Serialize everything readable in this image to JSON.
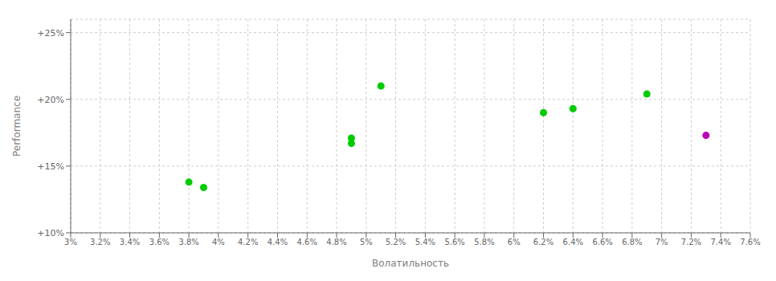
{
  "chart_data": {
    "type": "scatter",
    "xlabel": "Волатильность",
    "ylabel": "Performance",
    "xlim": [
      0.03,
      0.076
    ],
    "ylim": [
      0.1,
      0.26
    ],
    "xticks": [
      {
        "value": 0.03,
        "label": "3%"
      },
      {
        "value": 0.032,
        "label": "3.2%"
      },
      {
        "value": 0.034,
        "label": "3.4%"
      },
      {
        "value": 0.036,
        "label": "3.6%"
      },
      {
        "value": 0.038,
        "label": "3.8%"
      },
      {
        "value": 0.04,
        "label": "4%"
      },
      {
        "value": 0.042,
        "label": "4.2%"
      },
      {
        "value": 0.044,
        "label": "4.4%"
      },
      {
        "value": 0.046,
        "label": "4.6%"
      },
      {
        "value": 0.048,
        "label": "4.8%"
      },
      {
        "value": 0.05,
        "label": "5%"
      },
      {
        "value": 0.052,
        "label": "5.2%"
      },
      {
        "value": 0.054,
        "label": "5.4%"
      },
      {
        "value": 0.056,
        "label": "5.6%"
      },
      {
        "value": 0.058,
        "label": "5.8%"
      },
      {
        "value": 0.06,
        "label": "6%"
      },
      {
        "value": 0.062,
        "label": "6.2%"
      },
      {
        "value": 0.064,
        "label": "6.4%"
      },
      {
        "value": 0.066,
        "label": "6.6%"
      },
      {
        "value": 0.068,
        "label": "6.8%"
      },
      {
        "value": 0.07,
        "label": "7%"
      },
      {
        "value": 0.072,
        "label": "7.2%"
      },
      {
        "value": 0.074,
        "label": "7.4%"
      },
      {
        "value": 0.076,
        "label": "7.6%"
      }
    ],
    "yticks": [
      {
        "value": 0.1,
        "label": "+10%"
      },
      {
        "value": 0.15,
        "label": "+15%"
      },
      {
        "value": 0.2,
        "label": "+20%"
      },
      {
        "value": 0.25,
        "label": "+25%"
      }
    ],
    "grid": true,
    "series": [
      {
        "color": "#00cc00",
        "x": [
          0.038,
          0.039,
          0.049,
          0.049,
          0.051,
          0.062,
          0.064,
          0.069
        ],
        "values": [
          0.138,
          0.134,
          0.171,
          0.167,
          0.21,
          0.19,
          0.193,
          0.204
        ]
      },
      {
        "color": "#bb00bb",
        "x": [
          0.073
        ],
        "values": [
          0.173
        ]
      }
    ]
  }
}
